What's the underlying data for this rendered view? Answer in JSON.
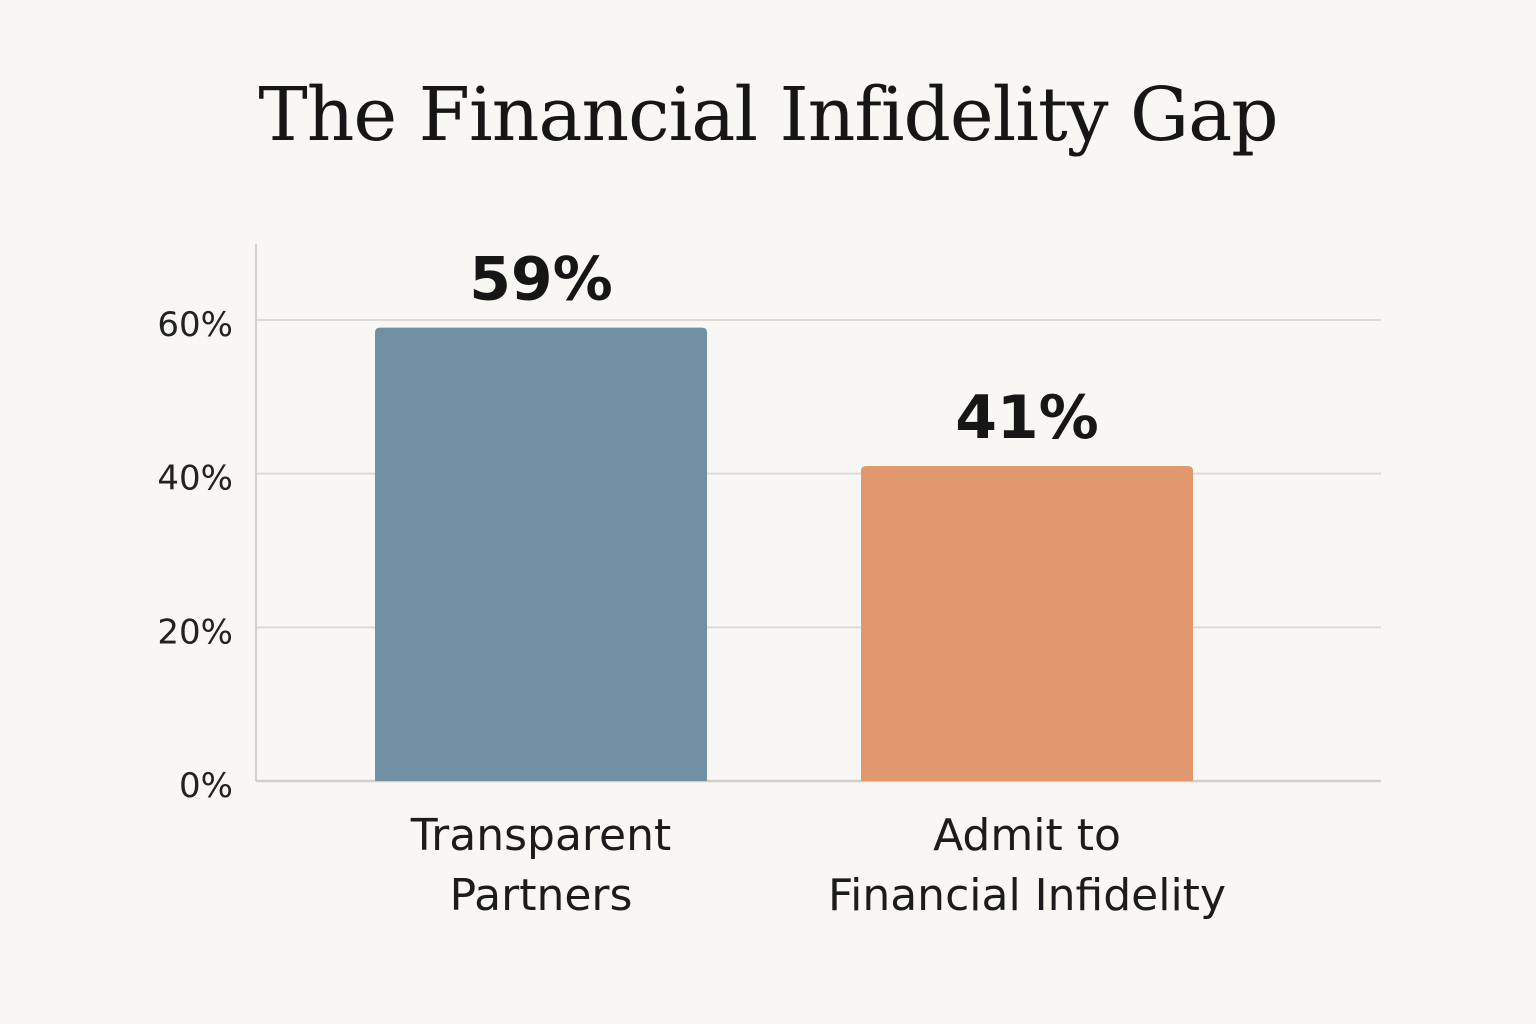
{
  "chart_data": {
    "type": "bar",
    "title": "The Financial Infidelity Gap",
    "xlabel": "",
    "ylabel": "",
    "categories": [
      "Transparent Partners",
      "Admit to Financial Infidelity"
    ],
    "category_lines": [
      [
        "Transparent",
        "Partners"
      ],
      [
        "Admit to",
        "Financial Infidelity"
      ]
    ],
    "values": [
      59,
      41
    ],
    "value_labels": [
      "59%",
      "41%"
    ],
    "ylim": [
      0,
      60
    ],
    "yticks": [
      0,
      20,
      40,
      60
    ],
    "ytick_labels": [
      "0%",
      "20%",
      "40%",
      "60%"
    ],
    "grid": true,
    "legend": "none",
    "colors": [
      "#7190a3",
      "#e2986e"
    ],
    "grid_color": "#dedbd5",
    "axis_color": "#d2cfca"
  }
}
